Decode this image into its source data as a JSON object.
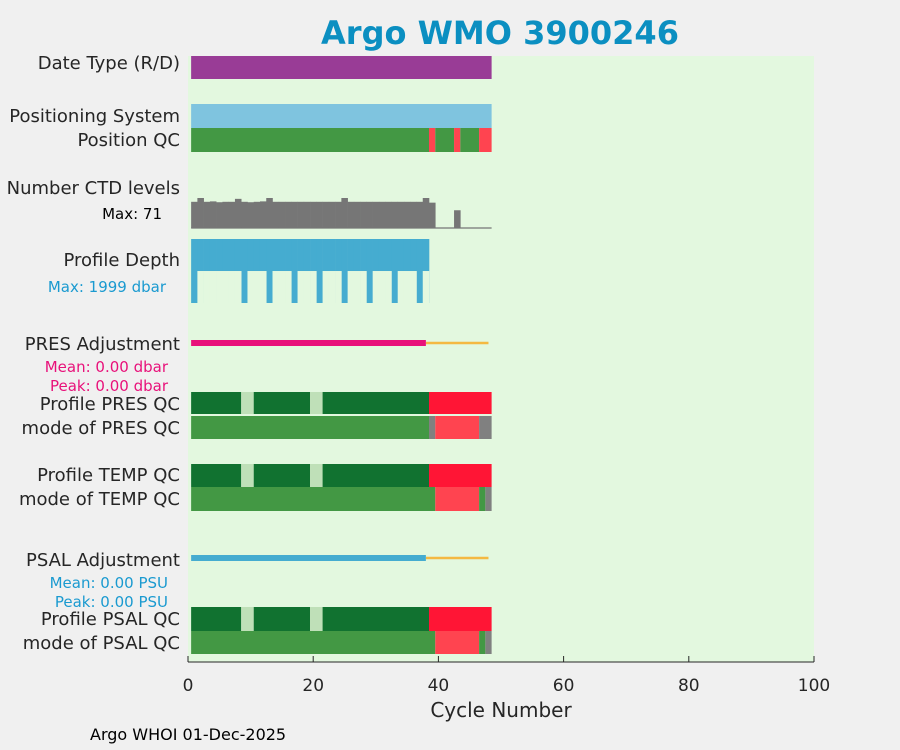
{
  "title": "Argo WMO 3900246",
  "footer": "Argo WHOI 01-Dec-2025",
  "colors": {
    "title": "#0b8fc1",
    "plot_bg": "#e3f8df",
    "date_type": "#993c96",
    "positioning": "#7fc4df",
    "qc_good": "#439844",
    "qc_good_dark": "#117230",
    "qc_light": "#bfe0b8",
    "qc_bad": "#ff4450",
    "qc_bad_bright": "#ff1535",
    "qc_gray": "#808080",
    "ctd": "#767676",
    "profile_depth": "#45acd0",
    "pres_adjust": "#e8117a",
    "adjust_line_tail": "#f4b942",
    "psal_adjust": "#45acd0",
    "sublabel_pink": "#e8117a",
    "sublabel_blue": "#1a9ad0"
  },
  "chart_data": {
    "type": "bar",
    "xlabel": "Cycle Number",
    "xlim": [
      0,
      100
    ],
    "xticks": [
      "0",
      "20",
      "40",
      "60",
      "80",
      "100"
    ],
    "rows": {
      "date_type": {
        "label": "Date Type (R/D)",
        "segments": [
          [
            0.5,
            48.5,
            "date_type"
          ]
        ]
      },
      "positioning": {
        "label": "Positioning System",
        "segments": [
          [
            0.5,
            48.5,
            "positioning"
          ]
        ]
      },
      "position_qc": {
        "label": "Position QC",
        "segments": [
          [
            0.5,
            38.5,
            "qc_good"
          ],
          [
            38.5,
            39.5,
            "qc_bad"
          ],
          [
            39.5,
            42.5,
            "qc_good"
          ],
          [
            42.5,
            43.5,
            "qc_bad"
          ],
          [
            43.5,
            46.5,
            "qc_good"
          ],
          [
            46.5,
            48.5,
            "qc_bad"
          ]
        ]
      },
      "ctd_levels": {
        "label": "Number CTD levels",
        "max_label": "Max: 71",
        "max": 71,
        "baseline_end": 48.5,
        "values": [
          62,
          71,
          62,
          63,
          61,
          62,
          62,
          69,
          62,
          61,
          62,
          63,
          71,
          62,
          62,
          62,
          62,
          62,
          62,
          62,
          62,
          62,
          62,
          62,
          71,
          62,
          62,
          62,
          62,
          62,
          62,
          62,
          62,
          62,
          62,
          62,
          62,
          71,
          60,
          0,
          0,
          0,
          42,
          0,
          0,
          0,
          0,
          0
        ]
      },
      "profile_depth": {
        "label": "Profile Depth",
        "max_label": "Max: 1999 dbar",
        "max": 1999,
        "full_values": [
          1999,
          1999,
          1999,
          1999,
          1999,
          1999,
          1999,
          1999,
          1999,
          1999,
          1999,
          1999,
          1999,
          1999,
          1999,
          1999,
          1999,
          1999,
          1999,
          1999,
          1999,
          1999,
          1999,
          1999,
          1999,
          1999,
          1999,
          1999,
          1999,
          1999,
          1999,
          1999,
          1999,
          1999,
          1999,
          1999,
          1999,
          1999
        ],
        "short_values": [
          1000,
          1000,
          1000,
          1000,
          1000,
          1000,
          1000,
          1000,
          1000,
          1000,
          1000,
          1000,
          1000,
          1000,
          1000,
          1000,
          1000,
          1000,
          1000,
          1000,
          1000,
          1000,
          1000,
          1000,
          1000,
          1000,
          1000,
          1000,
          1000,
          1000,
          1000,
          1000,
          1000,
          1000,
          1000,
          1000,
          1000,
          1000
        ]
      },
      "pres_adjustment": {
        "label": "PRES Adjustment",
        "mean_label": "Mean: 0.00 dbar",
        "peak_label": "Peak: 0.00 dbar",
        "line": [
          0.5,
          38
        ],
        "tail": [
          38,
          48
        ]
      },
      "profile_pres_qc": {
        "label": "Profile PRES QC",
        "segments": [
          [
            0.5,
            8.5,
            "qc_good_dark"
          ],
          [
            8.5,
            10.5,
            "qc_light"
          ],
          [
            10.5,
            19.5,
            "qc_good_dark"
          ],
          [
            19.5,
            21.5,
            "qc_light"
          ],
          [
            21.5,
            38.5,
            "qc_good_dark"
          ],
          [
            38.5,
            48.5,
            "qc_bad_bright"
          ]
        ]
      },
      "mode_pres_qc": {
        "label": "mode of PRES QC",
        "segments": [
          [
            0.5,
            38.5,
            "qc_good"
          ],
          [
            38.5,
            39.5,
            "qc_gray"
          ],
          [
            39.5,
            46.5,
            "qc_bad"
          ],
          [
            46.5,
            48.5,
            "qc_gray"
          ]
        ]
      },
      "profile_temp_qc": {
        "label": "Profile TEMP QC",
        "segments": [
          [
            0.5,
            8.5,
            "qc_good_dark"
          ],
          [
            8.5,
            10.5,
            "qc_light"
          ],
          [
            10.5,
            19.5,
            "qc_good_dark"
          ],
          [
            19.5,
            21.5,
            "qc_light"
          ],
          [
            21.5,
            38.5,
            "qc_good_dark"
          ],
          [
            38.5,
            48.5,
            "qc_bad_bright"
          ]
        ]
      },
      "mode_temp_qc": {
        "label": "mode of TEMP QC",
        "segments": [
          [
            0.5,
            39.5,
            "qc_good"
          ],
          [
            39.5,
            46.5,
            "qc_bad"
          ],
          [
            46.5,
            47.5,
            "qc_good"
          ],
          [
            47.5,
            48.5,
            "qc_gray"
          ]
        ]
      },
      "psal_adjustment": {
        "label": "PSAL Adjustment",
        "mean_label": "Mean: 0.00 PSU",
        "peak_label": "Peak: 0.00 PSU",
        "line": [
          0.5,
          38
        ],
        "tail": [
          38,
          48
        ]
      },
      "profile_psal_qc": {
        "label": "Profile PSAL QC",
        "segments": [
          [
            0.5,
            8.5,
            "qc_good_dark"
          ],
          [
            8.5,
            10.5,
            "qc_light"
          ],
          [
            10.5,
            19.5,
            "qc_good_dark"
          ],
          [
            19.5,
            21.5,
            "qc_light"
          ],
          [
            21.5,
            38.5,
            "qc_good_dark"
          ],
          [
            38.5,
            48.5,
            "qc_bad_bright"
          ]
        ]
      },
      "mode_psal_qc": {
        "label": "mode of PSAL QC",
        "segments": [
          [
            0.5,
            39.5,
            "qc_good"
          ],
          [
            39.5,
            46.5,
            "qc_bad"
          ],
          [
            46.5,
            47.5,
            "qc_good"
          ],
          [
            47.5,
            48.5,
            "qc_gray"
          ]
        ]
      }
    }
  }
}
